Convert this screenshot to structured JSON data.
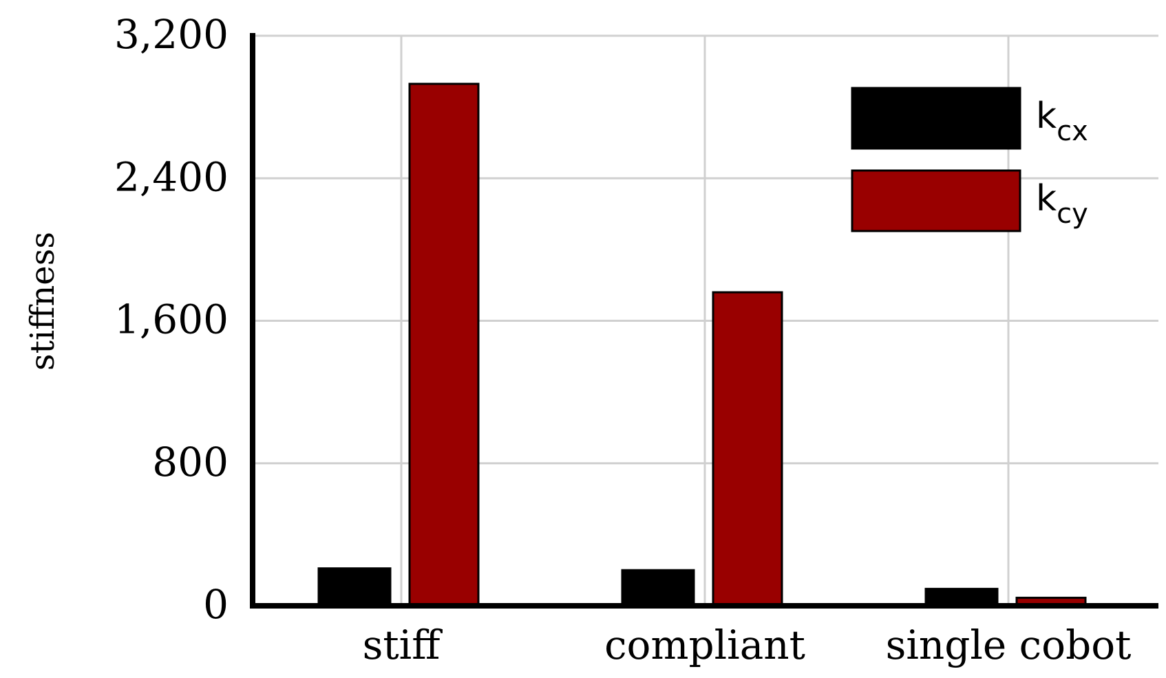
{
  "chart_data": {
    "type": "bar",
    "title": "",
    "xlabel": "",
    "ylabel": "stiffness",
    "ylim": [
      0,
      3200
    ],
    "yticks": [
      0,
      800,
      1600,
      2400,
      3200
    ],
    "ytick_labels": [
      "0",
      "800",
      "1,600",
      "2,400",
      "3,200"
    ],
    "categories": [
      "stiff",
      "compliant",
      "single cobot"
    ],
    "series": [
      {
        "name_main": "k",
        "name_sub": "cx",
        "color": "#000000",
        "values": [
          210,
          200,
          95
        ]
      },
      {
        "name_main": "k",
        "name_sub": "cy",
        "color": "#990000",
        "values": [
          2930,
          1760,
          45
        ]
      }
    ],
    "grid": true,
    "legend": "top-right"
  }
}
